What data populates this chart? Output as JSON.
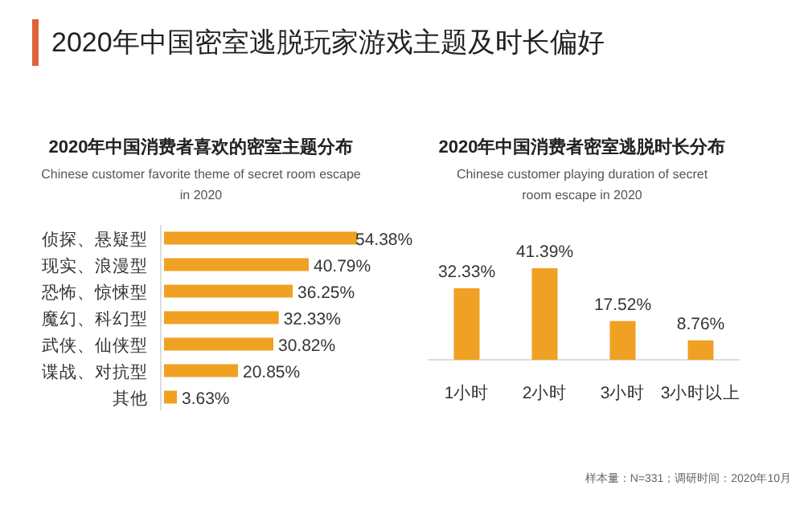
{
  "chart_data": [
    {
      "type": "bar",
      "orientation": "horizontal",
      "title": "2020年中国消费者喜欢的密室主题分布",
      "subtitle": "Chinese customer favorite theme of secret room escape in 2020",
      "annotations": [
        "2020年中国密室逃脱玩家游戏主题及时长偏好"
      ],
      "categories": [
        "侦探、悬疑型",
        "现实、浪漫型",
        "恐怖、惊悚型",
        "魔幻、科幻型",
        "武侠、仙侠型",
        "谍战、对抗型",
        "其他"
      ],
      "values": [
        54.38,
        40.79,
        36.25,
        32.33,
        30.82,
        20.85,
        3.63
      ],
      "value_labels": [
        "54.38%",
        "40.79%",
        "36.25%",
        "32.33%",
        "30.82%",
        "20.85%",
        "3.63%"
      ],
      "color": "#f0a023"
    },
    {
      "type": "bar",
      "title": "2020年中国消费者密室逃脱时长分布",
      "subtitle": "Chinese customer playing duration of secret room escape in 2020",
      "annotations": [
        "样本量：N=331；调研时间：2020年10月"
      ],
      "categories": [
        "1小时",
        "2小时",
        "3小时",
        "3小时以上"
      ],
      "values": [
        32.33,
        41.39,
        17.52,
        8.76
      ],
      "value_labels": [
        "32.33%",
        "41.39%",
        "17.52%",
        "8.76%"
      ],
      "color": "#f0a023"
    }
  ]
}
